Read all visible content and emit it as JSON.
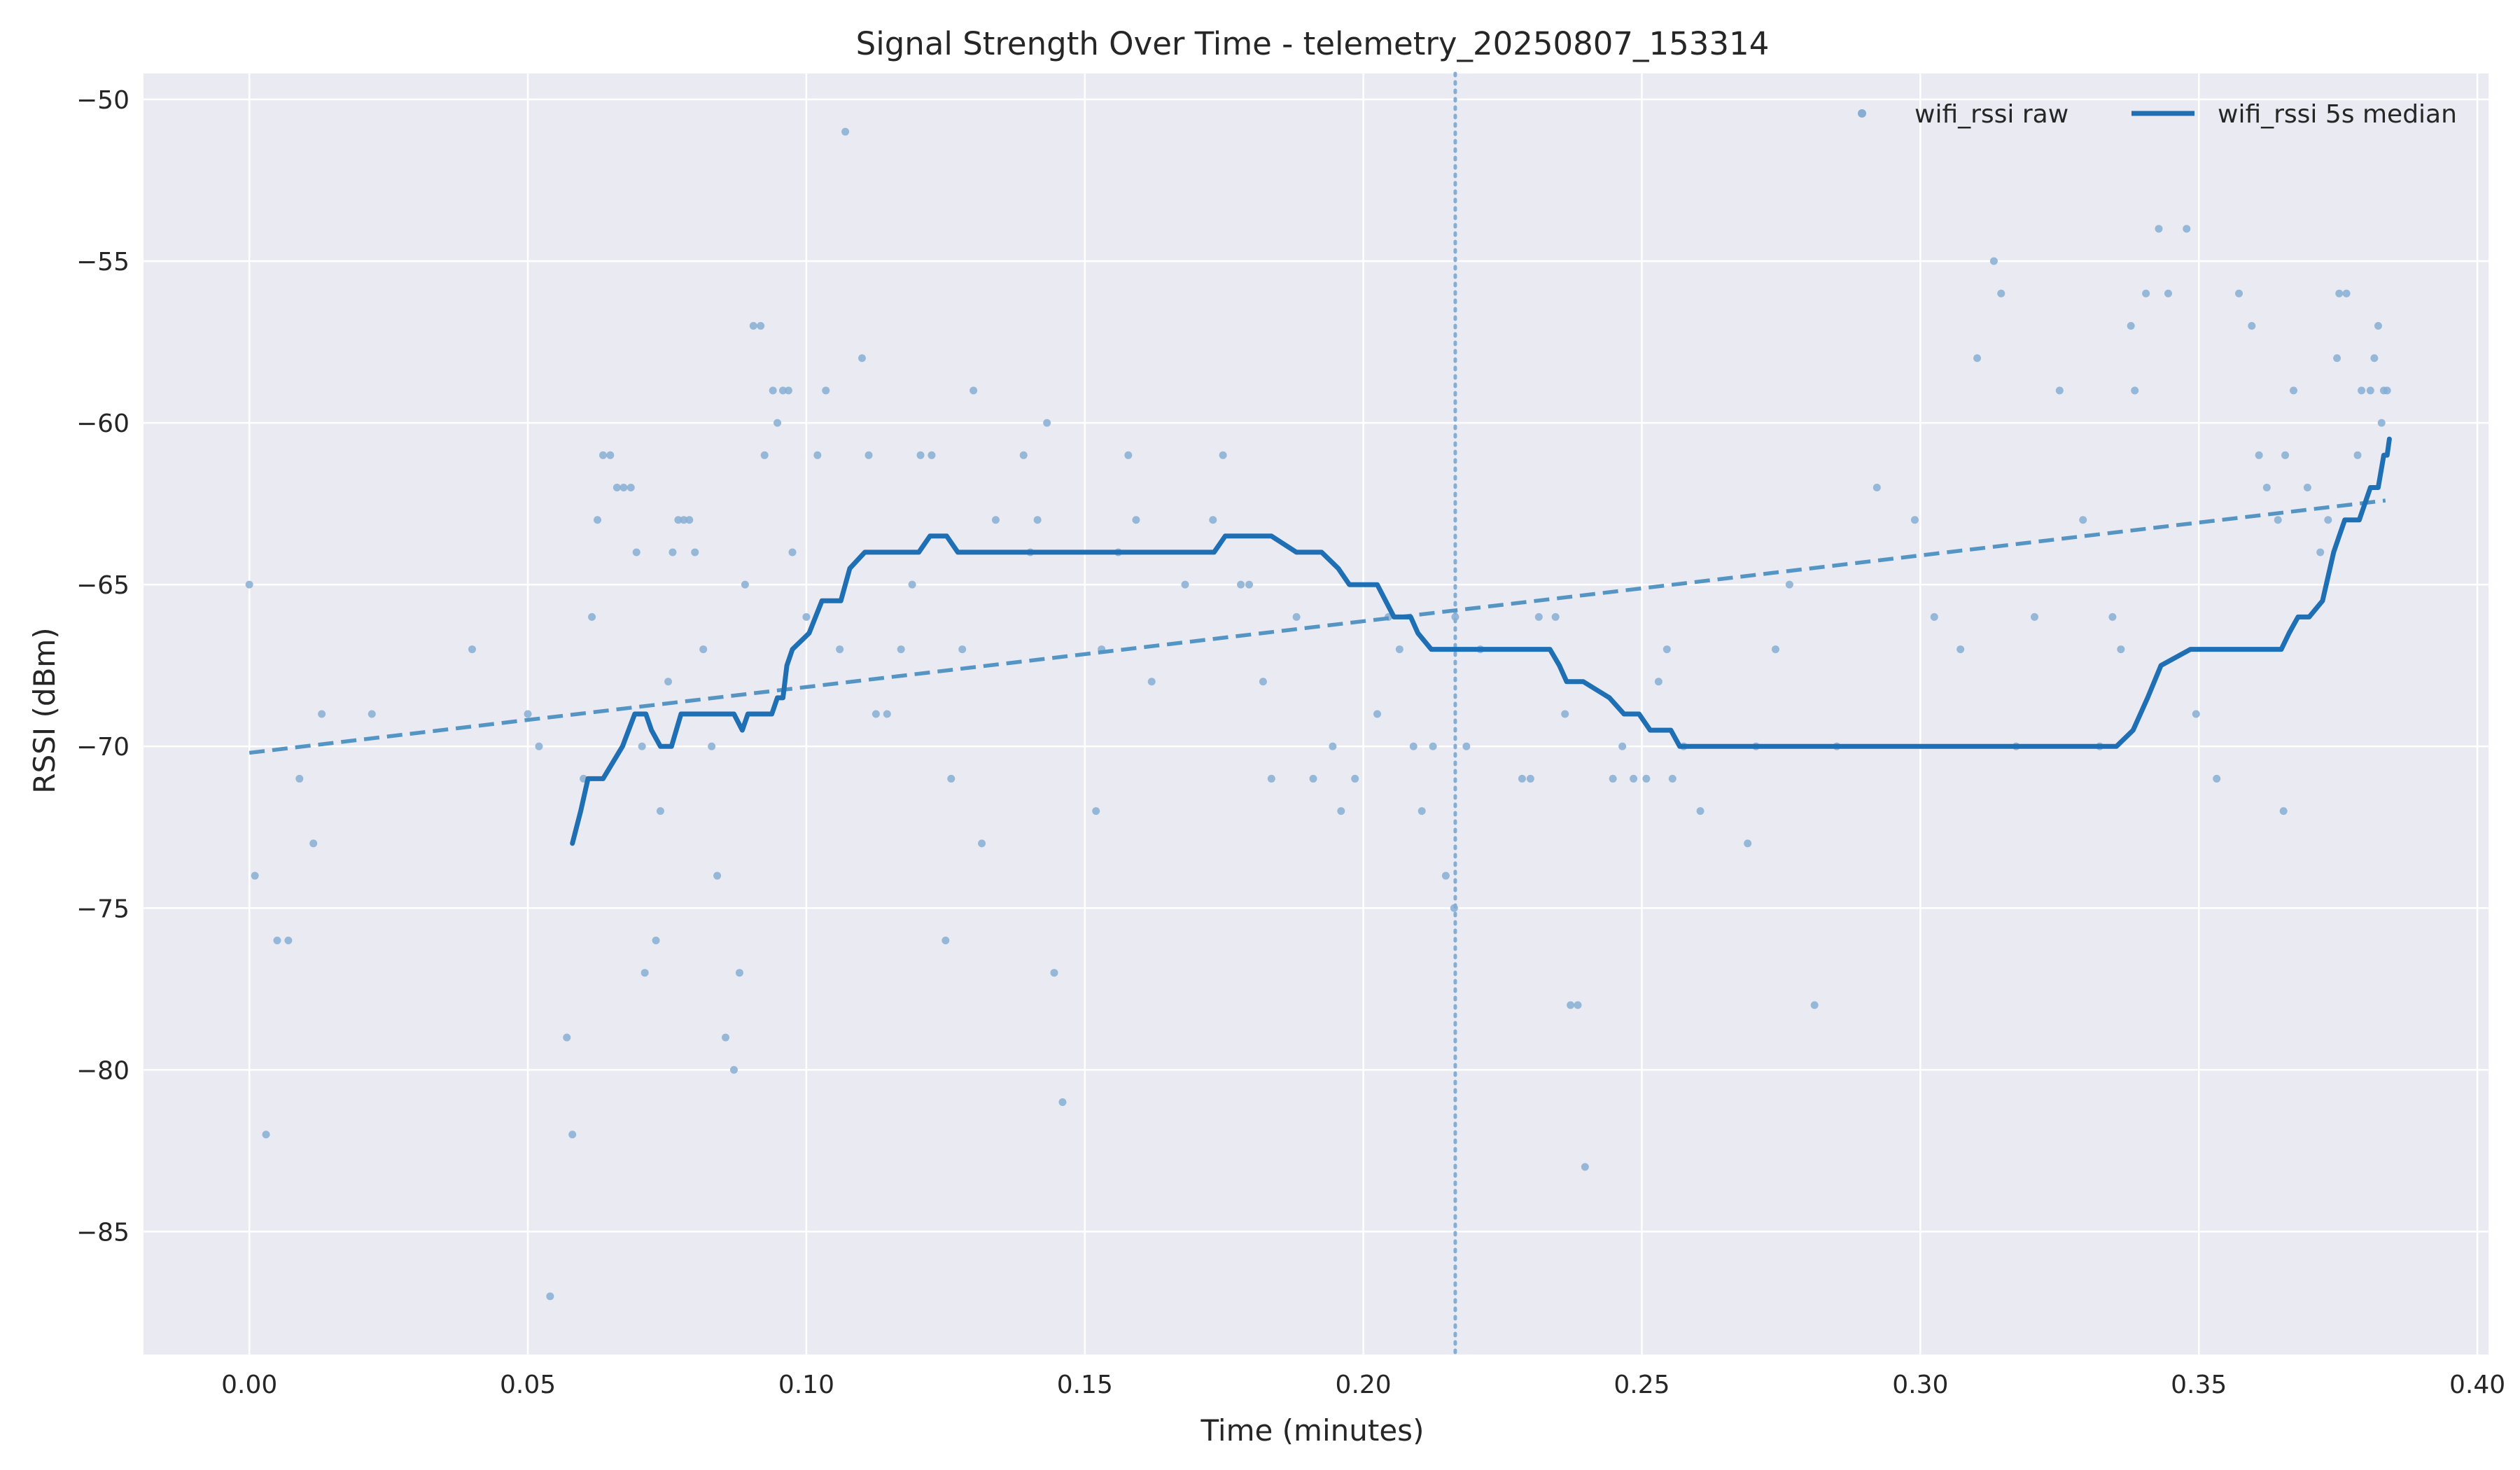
{
  "chart_data": {
    "type": "line",
    "title": "Signal Strength Over Time - telemetry_20250807_153314",
    "xlabel": "Time (minutes)",
    "ylabel": "RSSI (dBm)",
    "xlim": [
      -0.019,
      0.402
    ],
    "ylim": [
      -88.8,
      -49.2
    ],
    "xticks": [
      0.0,
      0.05,
      0.1,
      0.15,
      0.2,
      0.25,
      0.3,
      0.35,
      0.4
    ],
    "xtick_labels": [
      "0.00",
      "0.05",
      "0.10",
      "0.15",
      "0.20",
      "0.25",
      "0.30",
      "0.35",
      "0.40"
    ],
    "yticks": [
      -85,
      -80,
      -75,
      -70,
      -65,
      -60,
      -55,
      -50
    ],
    "ytick_labels": [
      "−85",
      "−80",
      "−75",
      "−70",
      "−65",
      "−60",
      "−55",
      "−50"
    ],
    "grid": true,
    "legend_position": "top-right",
    "colors": {
      "plot_bg": "#eaeaf2",
      "grid": "#ffffff",
      "raw": "#86aed4",
      "median": "#1f6fb4",
      "trend": "#5495c4",
      "vline": "#86aed4"
    },
    "series": [
      {
        "name": "wifi_rssi raw",
        "kind": "scatter",
        "points": [
          [
            0.0,
            -65
          ],
          [
            0.001,
            -74
          ],
          [
            0.003,
            -82
          ],
          [
            0.005,
            -76
          ],
          [
            0.007,
            -76
          ],
          [
            0.009,
            -71
          ],
          [
            0.0115,
            -73
          ],
          [
            0.013,
            -69
          ],
          [
            0.022,
            -69
          ],
          [
            0.04,
            -67
          ],
          [
            0.05,
            -69
          ],
          [
            0.052,
            -70
          ],
          [
            0.054,
            -87
          ],
          [
            0.057,
            -79
          ],
          [
            0.058,
            -82
          ],
          [
            0.06,
            -71
          ],
          [
            0.0615,
            -66
          ],
          [
            0.0625,
            -63
          ],
          [
            0.0635,
            -61
          ],
          [
            0.0648,
            -61
          ],
          [
            0.066,
            -62
          ],
          [
            0.0672,
            -62
          ],
          [
            0.0685,
            -62
          ],
          [
            0.0695,
            -64
          ],
          [
            0.0705,
            -70
          ],
          [
            0.071,
            -77
          ],
          [
            0.073,
            -76
          ],
          [
            0.0738,
            -72
          ],
          [
            0.0752,
            -68
          ],
          [
            0.076,
            -64
          ],
          [
            0.077,
            -63
          ],
          [
            0.078,
            -63
          ],
          [
            0.079,
            -63
          ],
          [
            0.08,
            -64
          ],
          [
            0.0815,
            -67
          ],
          [
            0.083,
            -70
          ],
          [
            0.084,
            -74
          ],
          [
            0.0855,
            -79
          ],
          [
            0.087,
            -80
          ],
          [
            0.088,
            -77
          ],
          [
            0.089,
            -65
          ],
          [
            0.0905,
            -57
          ],
          [
            0.0918,
            -57
          ],
          [
            0.0925,
            -61
          ],
          [
            0.094,
            -59
          ],
          [
            0.0948,
            -60
          ],
          [
            0.0958,
            -59
          ],
          [
            0.0968,
            -59
          ],
          [
            0.0975,
            -64
          ],
          [
            0.1,
            -66
          ],
          [
            0.102,
            -61
          ],
          [
            0.1035,
            -59
          ],
          [
            0.106,
            -67
          ],
          [
            0.107,
            -51
          ],
          [
            0.11,
            -58
          ],
          [
            0.1112,
            -61
          ],
          [
            0.1125,
            -69
          ],
          [
            0.1145,
            -69
          ],
          [
            0.117,
            -67
          ],
          [
            0.119,
            -65
          ],
          [
            0.1205,
            -61
          ],
          [
            0.1225,
            -61
          ],
          [
            0.125,
            -76
          ],
          [
            0.126,
            -71
          ],
          [
            0.128,
            -67
          ],
          [
            0.13,
            -59
          ],
          [
            0.1315,
            -73
          ],
          [
            0.134,
            -63
          ],
          [
            0.139,
            -61
          ],
          [
            0.1402,
            -64
          ],
          [
            0.1415,
            -63
          ],
          [
            0.1432,
            -60
          ],
          [
            0.1445,
            -77
          ],
          [
            0.146,
            -81
          ],
          [
            0.152,
            -72
          ],
          [
            0.153,
            -67
          ],
          [
            0.156,
            -64
          ],
          [
            0.1578,
            -61
          ],
          [
            0.1592,
            -63
          ],
          [
            0.162,
            -68
          ],
          [
            0.168,
            -65
          ],
          [
            0.173,
            -63
          ],
          [
            0.1748,
            -61
          ],
          [
            0.178,
            -65
          ],
          [
            0.1795,
            -65
          ],
          [
            0.182,
            -68
          ],
          [
            0.1835,
            -71
          ],
          [
            0.188,
            -66
          ],
          [
            0.191,
            -71
          ],
          [
            0.1945,
            -70
          ],
          [
            0.196,
            -72
          ],
          [
            0.1985,
            -71
          ],
          [
            0.2025,
            -69
          ],
          [
            0.2045,
            -66
          ],
          [
            0.2065,
            -67
          ],
          [
            0.209,
            -70
          ],
          [
            0.2105,
            -72
          ],
          [
            0.2125,
            -70
          ],
          [
            0.2148,
            -74
          ],
          [
            0.2163,
            -75
          ],
          [
            0.2165,
            -66
          ],
          [
            0.2185,
            -70
          ],
          [
            0.221,
            -67
          ],
          [
            0.2285,
            -71
          ],
          [
            0.23,
            -71
          ],
          [
            0.2315,
            -66
          ],
          [
            0.2345,
            -66
          ],
          [
            0.2362,
            -69
          ],
          [
            0.2372,
            -78
          ],
          [
            0.2385,
            -78
          ],
          [
            0.2398,
            -83
          ],
          [
            0.2448,
            -71
          ],
          [
            0.2465,
            -70
          ],
          [
            0.2485,
            -71
          ],
          [
            0.2508,
            -71
          ],
          [
            0.253,
            -68
          ],
          [
            0.2545,
            -67
          ],
          [
            0.2555,
            -71
          ],
          [
            0.2575,
            -70
          ],
          [
            0.2605,
            -72
          ],
          [
            0.269,
            -73
          ],
          [
            0.2705,
            -70
          ],
          [
            0.274,
            -67
          ],
          [
            0.2765,
            -65
          ],
          [
            0.281,
            -78
          ],
          [
            0.285,
            -70
          ],
          [
            0.2922,
            -62
          ],
          [
            0.299,
            -63
          ],
          [
            0.3025,
            -66
          ],
          [
            0.3072,
            -67
          ],
          [
            0.3102,
            -58
          ],
          [
            0.3132,
            -55
          ],
          [
            0.3145,
            -56
          ],
          [
            0.3172,
            -70
          ],
          [
            0.3205,
            -66
          ],
          [
            0.325,
            -59
          ],
          [
            0.3292,
            -63
          ],
          [
            0.3322,
            -70
          ],
          [
            0.3345,
            -66
          ],
          [
            0.336,
            -67
          ],
          [
            0.3378,
            -57
          ],
          [
            0.3385,
            -59
          ],
          [
            0.3405,
            -56
          ],
          [
            0.3428,
            -54
          ],
          [
            0.3445,
            -56
          ],
          [
            0.3478,
            -54
          ],
          [
            0.3495,
            -69
          ],
          [
            0.3532,
            -71
          ],
          [
            0.3572,
            -56
          ],
          [
            0.3595,
            -57
          ],
          [
            0.3608,
            -61
          ],
          [
            0.3622,
            -62
          ],
          [
            0.3642,
            -63
          ],
          [
            0.3652,
            -72
          ],
          [
            0.3655,
            -61
          ],
          [
            0.367,
            -59
          ],
          [
            0.3695,
            -62
          ],
          [
            0.3718,
            -64
          ],
          [
            0.3732,
            -63
          ],
          [
            0.3748,
            -58
          ],
          [
            0.3752,
            -56
          ],
          [
            0.3765,
            -56
          ],
          [
            0.3785,
            -61
          ],
          [
            0.3792,
            -59
          ],
          [
            0.3808,
            -59
          ],
          [
            0.3815,
            -58
          ],
          [
            0.3822,
            -57
          ],
          [
            0.3828,
            -60
          ],
          [
            0.3832,
            -59
          ],
          [
            0.3838,
            -59
          ]
        ]
      },
      {
        "name": "wifi_rssi 5s median",
        "kind": "line",
        "points": [
          [
            0.058,
            -73
          ],
          [
            0.0595,
            -72
          ],
          [
            0.0608,
            -71
          ],
          [
            0.0635,
            -71
          ],
          [
            0.067,
            -70
          ],
          [
            0.0692,
            -69
          ],
          [
            0.0712,
            -69
          ],
          [
            0.0722,
            -69.5
          ],
          [
            0.0738,
            -70
          ],
          [
            0.0758,
            -70
          ],
          [
            0.0775,
            -69
          ],
          [
            0.087,
            -69
          ],
          [
            0.0885,
            -69.5
          ],
          [
            0.0895,
            -69
          ],
          [
            0.0938,
            -69
          ],
          [
            0.0948,
            -68.5
          ],
          [
            0.0958,
            -68.5
          ],
          [
            0.0965,
            -67.5
          ],
          [
            0.0975,
            -67
          ],
          [
            0.1005,
            -66.5
          ],
          [
            0.1028,
            -65.5
          ],
          [
            0.1062,
            -65.5
          ],
          [
            0.1078,
            -64.5
          ],
          [
            0.1105,
            -64
          ],
          [
            0.1202,
            -64
          ],
          [
            0.1222,
            -63.5
          ],
          [
            0.1252,
            -63.5
          ],
          [
            0.1272,
            -64
          ],
          [
            0.1732,
            -64
          ],
          [
            0.1752,
            -63.5
          ],
          [
            0.1835,
            -63.5
          ],
          [
            0.188,
            -64
          ],
          [
            0.1925,
            -64
          ],
          [
            0.1955,
            -64.5
          ],
          [
            0.1975,
            -65
          ],
          [
            0.2025,
            -65
          ],
          [
            0.2055,
            -66
          ],
          [
            0.2085,
            -66
          ],
          [
            0.2098,
            -66.5
          ],
          [
            0.2122,
            -67
          ],
          [
            0.2335,
            -67
          ],
          [
            0.2352,
            -67.5
          ],
          [
            0.2365,
            -68
          ],
          [
            0.2395,
            -68
          ],
          [
            0.2442,
            -68.5
          ],
          [
            0.2468,
            -69
          ],
          [
            0.2495,
            -69
          ],
          [
            0.2515,
            -69.5
          ],
          [
            0.2552,
            -69.5
          ],
          [
            0.2568,
            -70
          ],
          [
            0.3352,
            -70
          ],
          [
            0.3382,
            -69.5
          ],
          [
            0.3408,
            -68.5
          ],
          [
            0.3432,
            -67.5
          ],
          [
            0.3485,
            -67
          ],
          [
            0.3648,
            -67
          ],
          [
            0.3662,
            -66.5
          ],
          [
            0.3678,
            -66
          ],
          [
            0.3698,
            -66
          ],
          [
            0.3722,
            -65.5
          ],
          [
            0.3742,
            -64
          ],
          [
            0.3752,
            -63.5
          ],
          [
            0.3762,
            -63
          ],
          [
            0.3788,
            -63
          ],
          [
            0.3808,
            -62
          ],
          [
            0.3822,
            -62
          ],
          [
            0.3832,
            -61
          ],
          [
            0.3838,
            -61
          ],
          [
            0.3842,
            -60.5
          ]
        ]
      },
      {
        "name": "trend",
        "kind": "line-dashed",
        "points": [
          [
            0.0,
            -70.2
          ],
          [
            0.3835,
            -62.4
          ]
        ]
      },
      {
        "name": "marker",
        "kind": "vline",
        "x": 0.2165
      }
    ]
  }
}
